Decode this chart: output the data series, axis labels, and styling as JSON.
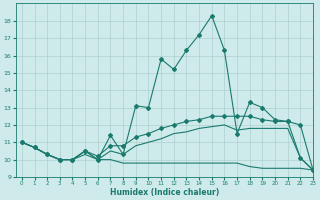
{
  "xlabel": "Humidex (Indice chaleur)",
  "background_color": "#ceeaea",
  "grid_color": "#afd0d0",
  "line_color": "#1a7a6e",
  "x_values": [
    0,
    1,
    2,
    3,
    4,
    5,
    6,
    7,
    8,
    9,
    10,
    11,
    12,
    13,
    14,
    15,
    16,
    17,
    18,
    19,
    20,
    21,
    22,
    23
  ],
  "line_max": [
    11.0,
    10.7,
    10.3,
    10.0,
    10.0,
    10.5,
    10.0,
    11.4,
    10.3,
    13.1,
    13.0,
    15.8,
    15.2,
    16.3,
    17.2,
    18.3,
    16.3,
    11.5,
    13.3,
    13.0,
    12.3,
    12.2,
    10.1,
    9.4
  ],
  "line_hi": [
    11.0,
    10.7,
    10.3,
    10.0,
    10.0,
    10.5,
    10.2,
    10.8,
    10.8,
    11.3,
    11.5,
    11.8,
    12.0,
    12.2,
    12.3,
    12.5,
    12.5,
    12.5,
    12.5,
    12.3,
    12.2,
    12.2,
    12.0,
    9.4
  ],
  "line_lo": [
    11.0,
    10.7,
    10.3,
    10.0,
    10.0,
    10.3,
    10.0,
    10.5,
    10.3,
    10.8,
    11.0,
    11.2,
    11.5,
    11.6,
    11.8,
    11.9,
    12.0,
    11.7,
    11.8,
    11.8,
    11.8,
    11.8,
    10.1,
    9.4
  ],
  "line_min": [
    11.0,
    10.7,
    10.3,
    10.0,
    10.0,
    10.5,
    10.0,
    10.0,
    9.8,
    9.8,
    9.8,
    9.8,
    9.8,
    9.8,
    9.8,
    9.8,
    9.8,
    9.8,
    9.6,
    9.5,
    9.5,
    9.5,
    9.5,
    9.4
  ],
  "ylim": [
    9,
    19
  ],
  "xlim": [
    -0.5,
    23
  ],
  "yticks": [
    9,
    10,
    11,
    12,
    13,
    14,
    15,
    16,
    17,
    18
  ],
  "xticks": [
    0,
    1,
    2,
    3,
    4,
    5,
    6,
    7,
    8,
    9,
    10,
    11,
    12,
    13,
    14,
    15,
    16,
    17,
    18,
    19,
    20,
    21,
    22,
    23
  ]
}
